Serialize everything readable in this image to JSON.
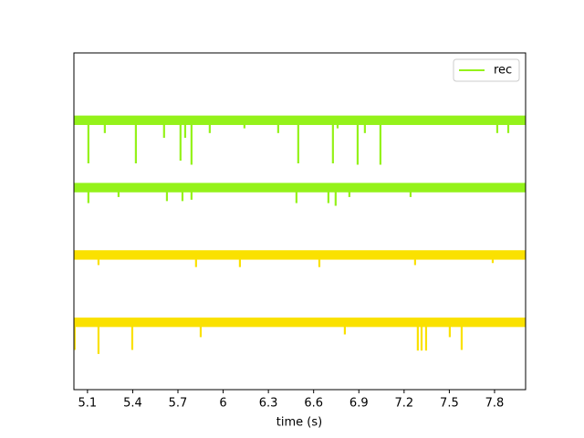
{
  "chart_data": {
    "type": "traces",
    "x_label": "time (s)",
    "xlim": [
      5.01,
      8.006
    ],
    "xticks": [
      5.1,
      5.4,
      5.7,
      6.0,
      6.3,
      6.6,
      6.9,
      7.2,
      7.5,
      7.8
    ],
    "ylim": [
      0,
      5
    ],
    "legend": "upper right",
    "series": [
      {
        "name": "rec",
        "color": "#94f21a",
        "offset": 4,
        "noise": 0.07,
        "x": [
          5.106,
          5.215,
          5.421,
          5.608,
          5.717,
          5.748,
          5.79,
          5.911,
          6.141,
          6.365,
          6.498,
          6.728,
          6.759,
          6.892,
          6.94,
          7.043,
          7.818,
          7.891
        ],
        "values": [
          -0.64,
          -0.19,
          -0.64,
          -0.26,
          -0.6,
          -0.26,
          -0.66,
          -0.19,
          -0.12,
          -0.19,
          -0.64,
          -0.64,
          -0.12,
          -0.66,
          -0.19,
          -0.66,
          -0.19,
          -0.19
        ]
      },
      {
        "color": "#94f21a",
        "offset": 3,
        "noise": 0.07,
        "x": [
          5.106,
          5.306,
          5.627,
          5.73,
          5.79,
          6.486,
          6.698,
          6.746,
          6.837,
          7.243
        ],
        "values": [
          -0.23,
          -0.14,
          -0.2,
          -0.2,
          -0.18,
          -0.23,
          -0.23,
          -0.27,
          -0.14,
          -0.14
        ]
      },
      {
        "color": "#fae100",
        "offset": 2,
        "noise": 0.07,
        "x": [
          5.173,
          5.82,
          6.111,
          6.638,
          7.273,
          7.788
        ],
        "values": [
          -0.15,
          -0.18,
          -0.18,
          -0.18,
          -0.15,
          -0.12
        ]
      },
      {
        "color": "#fae100",
        "offset": 1,
        "noise": 0.07,
        "x": [
          5.015,
          5.173,
          5.397,
          5.851,
          6.807,
          7.291,
          7.316,
          7.346,
          7.503,
          7.582
        ],
        "values": [
          -0.41,
          -0.47,
          -0.41,
          -0.22,
          -0.18,
          -0.42,
          -0.42,
          -0.42,
          -0.22,
          -0.41
        ]
      }
    ]
  }
}
